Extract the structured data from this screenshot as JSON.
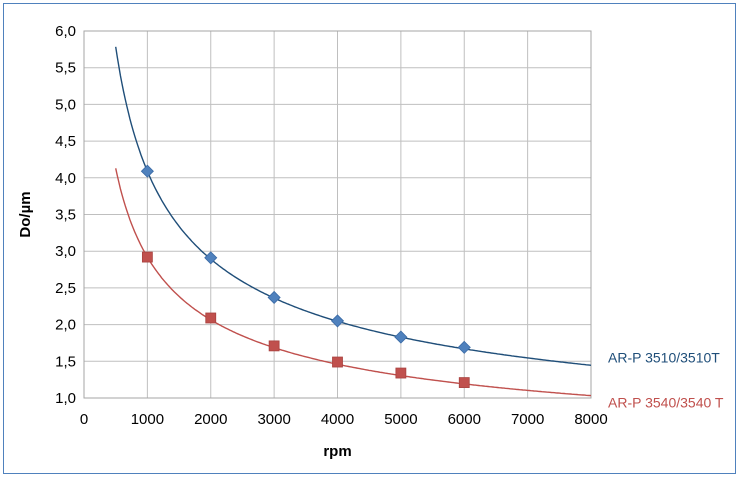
{
  "chart_data": {
    "type": "line",
    "xlabel": "rpm",
    "ylabel": "Do/µm",
    "xlim": [
      0,
      8000
    ],
    "ylim": [
      1.0,
      6.0
    ],
    "x_ticks": [
      "0",
      "1000",
      "2000",
      "3000",
      "4000",
      "5000",
      "6000",
      "7000",
      "8000"
    ],
    "y_ticks": [
      "1,0",
      "1,5",
      "2,0",
      "2,5",
      "3,0",
      "3,5",
      "4,0",
      "4,5",
      "5,0",
      "5,5",
      "6,0"
    ],
    "grid": true,
    "legend": "right-of-curve-ends",
    "series": [
      {
        "name": "AR-P 3510/3510T",
        "color": "#4f81bd",
        "line_color": "#1f4e79",
        "marker": "diamond",
        "points": [
          [
            1000,
            4.09
          ],
          [
            2000,
            2.91
          ],
          [
            3000,
            2.37
          ],
          [
            4000,
            2.05
          ],
          [
            5000,
            1.83
          ],
          [
            6000,
            1.69
          ]
        ],
        "fit": {
          "type": "power",
          "a": 4.09,
          "b": 0.5,
          "x_from": 500,
          "x_to": 8000
        }
      },
      {
        "name": "AR-P 3540/3540 T",
        "color": "#c0504d",
        "line_color": "#c0504d",
        "marker": "square",
        "points": [
          [
            1000,
            2.92
          ],
          [
            2000,
            2.09
          ],
          [
            3000,
            1.71
          ],
          [
            4000,
            1.49
          ],
          [
            5000,
            1.34
          ],
          [
            6000,
            1.21
          ]
        ],
        "fit": {
          "type": "power",
          "a": 2.92,
          "b": 0.5,
          "x_from": 500,
          "x_to": 8000
        }
      }
    ]
  }
}
